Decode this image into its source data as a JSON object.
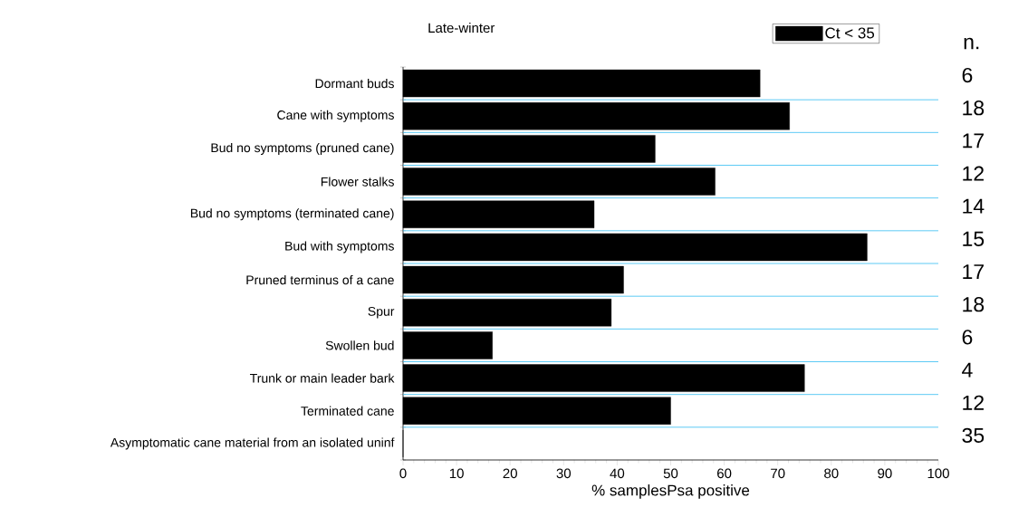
{
  "chart_data": {
    "type": "bar",
    "orientation": "horizontal",
    "title": "Late-winter",
    "xlabel": "% samplesPsa  positive",
    "categories": [
      "Dormant buds",
      "Cane with symptoms",
      "Bud no symptoms (pruned cane)",
      "Flower stalks",
      "Bud no symptoms (terminated cane)",
      "Bud with symptoms",
      "Pruned terminus of a cane",
      "Spur",
      "Swollen bud",
      "Trunk or main leader bark",
      "Terminated cane",
      "Asymptomatic cane material from an isolated uninf"
    ],
    "series": [
      {
        "name": "Ct < 35",
        "color": "#000000",
        "values": [
          66.7,
          72.2,
          47.1,
          58.3,
          35.7,
          86.7,
          41.2,
          38.9,
          16.7,
          75,
          50,
          0
        ]
      }
    ],
    "xlim": [
      0,
      100
    ],
    "xticks": [
      0,
      10,
      20,
      30,
      40,
      50,
      60,
      70,
      80,
      90,
      100
    ],
    "grid": "y",
    "legend": "top right",
    "annotations": [
      "n.",
      "6",
      "18",
      "17",
      "12",
      "14",
      "15",
      "17",
      "18",
      "6",
      "4",
      "12",
      "35"
    ]
  }
}
